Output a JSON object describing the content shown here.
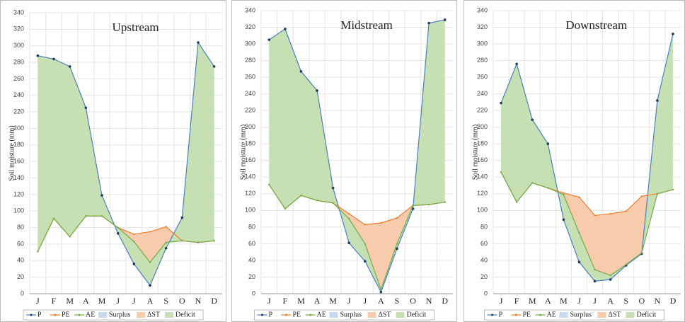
{
  "chart_data": [
    {
      "type": "line",
      "title": "Upstream",
      "y_label": "Soil moisture (mm)",
      "categories": [
        "J",
        "F",
        "M",
        "A",
        "M",
        "J",
        "J",
        "A",
        "S",
        "O",
        "N",
        "D"
      ],
      "series": [
        {
          "name": "P",
          "color": "#4a7fc0",
          "values": [
            288,
            284,
            275,
            225,
            119,
            73,
            36,
            10,
            55,
            92,
            304,
            275
          ]
        },
        {
          "name": "PE",
          "color": "#ed7d31",
          "values": [
            51,
            91,
            69,
            94,
            94,
            80,
            72,
            75,
            81,
            64,
            62,
            64
          ]
        },
        {
          "name": "AE",
          "color": "#70ad47",
          "values": [
            51,
            91,
            69,
            94,
            94,
            80,
            63,
            38,
            62,
            64,
            62,
            64
          ]
        }
      ],
      "areas": [
        {
          "name": "Surplus",
          "color": "#c5d9ef"
        },
        {
          "name": "ΔST",
          "color": "#f8cbad"
        },
        {
          "name": "Deficit",
          "color": "#c6e0b4"
        }
      ],
      "ylim": [
        0,
        340
      ],
      "yticks": [
        0,
        20,
        40,
        60,
        80,
        100,
        120,
        140,
        160,
        180,
        200,
        220,
        240,
        260,
        280,
        300,
        320,
        340
      ],
      "grid": true
    },
    {
      "type": "line",
      "title": "Midstream",
      "y_label": "Soil moisture (mm)",
      "categories": [
        "J",
        "F",
        "M",
        "A",
        "M",
        "J",
        "J",
        "A",
        "S",
        "O",
        "N",
        "D"
      ],
      "series": [
        {
          "name": "P",
          "color": "#4a7fc0",
          "values": [
            305,
            318,
            267,
            244,
            127,
            61,
            39,
            2,
            54,
            102,
            325,
            329
          ]
        },
        {
          "name": "PE",
          "color": "#ed7d31",
          "values": [
            131,
            102,
            118,
            112,
            109,
            96,
            83,
            85,
            91,
            106,
            107,
            110
          ]
        },
        {
          "name": "AE",
          "color": "#70ad47",
          "values": [
            131,
            102,
            118,
            112,
            109,
            90,
            60,
            5,
            60,
            106,
            107,
            110
          ]
        }
      ],
      "areas": [
        {
          "name": "Surplus",
          "color": "#c5d9ef"
        },
        {
          "name": "ΔST",
          "color": "#f8cbad"
        },
        {
          "name": "Deficit",
          "color": "#c6e0b4"
        }
      ],
      "ylim": [
        0,
        340
      ],
      "yticks": [
        0,
        20,
        40,
        60,
        80,
        100,
        120,
        140,
        160,
        180,
        200,
        220,
        240,
        260,
        280,
        300,
        320,
        340
      ],
      "grid": true
    },
    {
      "type": "line",
      "title": "Downstream",
      "y_label": "Soil moisture (mm)",
      "categories": [
        "J",
        "F",
        "M",
        "A",
        "M",
        "J",
        "J",
        "A",
        "S",
        "O",
        "N",
        "D"
      ],
      "series": [
        {
          "name": "P",
          "color": "#4a7fc0",
          "values": [
            229,
            276,
            209,
            180,
            89,
            38,
            15,
            17,
            34,
            48,
            232,
            312
          ]
        },
        {
          "name": "PE",
          "color": "#ed7d31",
          "values": [
            146,
            110,
            133,
            127,
            121,
            116,
            94,
            96,
            99,
            117,
            120,
            125
          ]
        },
        {
          "name": "AE",
          "color": "#70ad47",
          "values": [
            146,
            110,
            133,
            127,
            119,
            73,
            29,
            22,
            35,
            49,
            120,
            125
          ]
        }
      ],
      "areas": [
        {
          "name": "Surplus",
          "color": "#c5d9ef"
        },
        {
          "name": "ΔST",
          "color": "#f8cbad"
        },
        {
          "name": "Deficit",
          "color": "#c6e0b4"
        }
      ],
      "ylim": [
        0,
        340
      ],
      "yticks": [
        0,
        20,
        40,
        60,
        80,
        100,
        120,
        140,
        160,
        180,
        200,
        220,
        240,
        260,
        280,
        300,
        320,
        340
      ],
      "grid": true
    }
  ]
}
